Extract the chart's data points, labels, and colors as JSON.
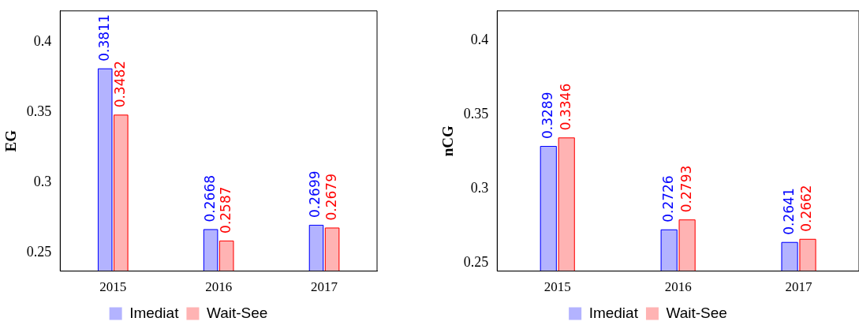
{
  "chart_data": [
    {
      "type": "bar",
      "ylabel": "EG",
      "categories": [
        "2015",
        "2016",
        "2017"
      ],
      "series": [
        {
          "name": "Imediat",
          "color": "#b3b3ff",
          "values": [
            0.3811,
            0.2668,
            0.2699
          ]
        },
        {
          "name": "Wait-See",
          "color": "#ffb3b3",
          "values": [
            0.3482,
            0.2587,
            0.2679
          ]
        }
      ],
      "ylim": [
        0.237,
        0.422
      ],
      "yticks": [
        0.25,
        0.3,
        0.35,
        0.4
      ],
      "data_labels": true,
      "legend": "bottom",
      "grid": false
    },
    {
      "type": "bar",
      "ylabel": "nCG",
      "categories": [
        "2015",
        "2016",
        "2017"
      ],
      "series": [
        {
          "name": "Imediat",
          "color": "#b3b3ff",
          "values": [
            0.3289,
            0.2726,
            0.2641
          ]
        },
        {
          "name": "Wait-See",
          "color": "#ffb3b3",
          "values": [
            0.3346,
            0.2793,
            0.2662
          ]
        }
      ],
      "ylim": [
        0.2445,
        0.42
      ],
      "yticks": [
        0.25,
        0.3,
        0.35,
        0.4
      ],
      "data_labels": true,
      "legend": "bottom",
      "grid": false
    }
  ]
}
